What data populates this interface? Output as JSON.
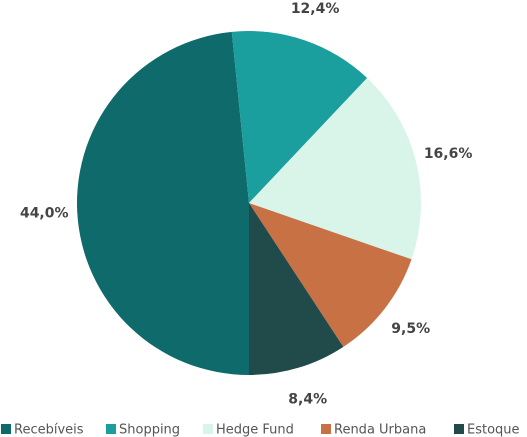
{
  "chart_data": {
    "type": "pie",
    "categories": [
      "Recebíveis",
      "Shopping",
      "Hedge Fund",
      "Renda Urbana",
      "Estoque"
    ],
    "values": [
      44.0,
      12.4,
      16.6,
      9.5,
      8.4
    ],
    "value_labels": [
      "44,0%",
      "12,4%",
      "16,6%",
      "9,5%",
      "8,4%"
    ],
    "colors": [
      "#0f6b6b",
      "#1a9e9e",
      "#d9f5ea",
      "#c87145",
      "#214a4a"
    ],
    "legend": "bottom"
  }
}
